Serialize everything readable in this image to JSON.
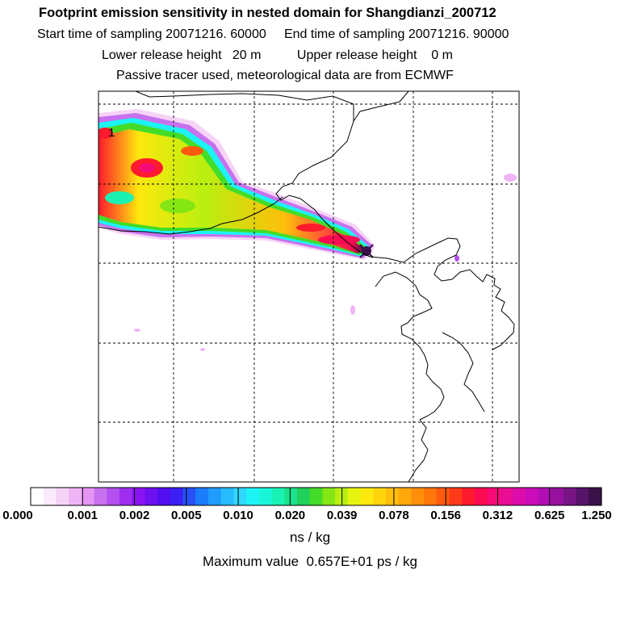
{
  "header": {
    "title": "Footprint emission sensitivity in nested domain for Shangdianzi_200712",
    "line1": "Start time of sampling 20071216. 60000     End time of sampling 20071216. 90000",
    "line2": "Lower release height   20 m          Upper release height    0 m",
    "line3": "Passive tracer used, meteorological data are from ECMWF"
  },
  "map": {
    "contour_label": "1",
    "colors": {
      "frame": "#000000",
      "grid": "#000000",
      "coast": "#000000"
    }
  },
  "colorbar": {
    "colors": [
      "#ffffff",
      "#fbeafb",
      "#f6d3f6",
      "#efb4f5",
      "#e595f3",
      "#c871ee",
      "#b350ef",
      "#9f2ef0",
      "#8a13f1",
      "#6e10f0",
      "#520eef",
      "#3a20f5",
      "#2850f8",
      "#1a7dfa",
      "#1f9cfb",
      "#27bafc",
      "#2fd8fd",
      "#1df3f4",
      "#19f5d9",
      "#1af2b4",
      "#19e38c",
      "#21cf5b",
      "#43dc28",
      "#84e613",
      "#b9ef10",
      "#e6f40f",
      "#fde80d",
      "#ffd40c",
      "#ffbe0b",
      "#ffa70b",
      "#ff8f0b",
      "#ff760b",
      "#ff5a0e",
      "#ff3a18",
      "#ff1a2d",
      "#fd0b52",
      "#f70b77",
      "#eb0c95",
      "#dc0caa",
      "#ca0cb9",
      "#b20db4",
      "#96119d",
      "#781484",
      "#58136a",
      "#3a1148"
    ],
    "tick_labels": [
      "0.000",
      "0.001",
      "0.002",
      "0.005",
      "0.010",
      "0.020",
      "0.039",
      "0.078",
      "0.156",
      "0.312",
      "0.625",
      "1.250"
    ],
    "units": "ns / kg"
  },
  "footer": {
    "max_value": "Maximum value  0.657E+01 ps / kg"
  }
}
